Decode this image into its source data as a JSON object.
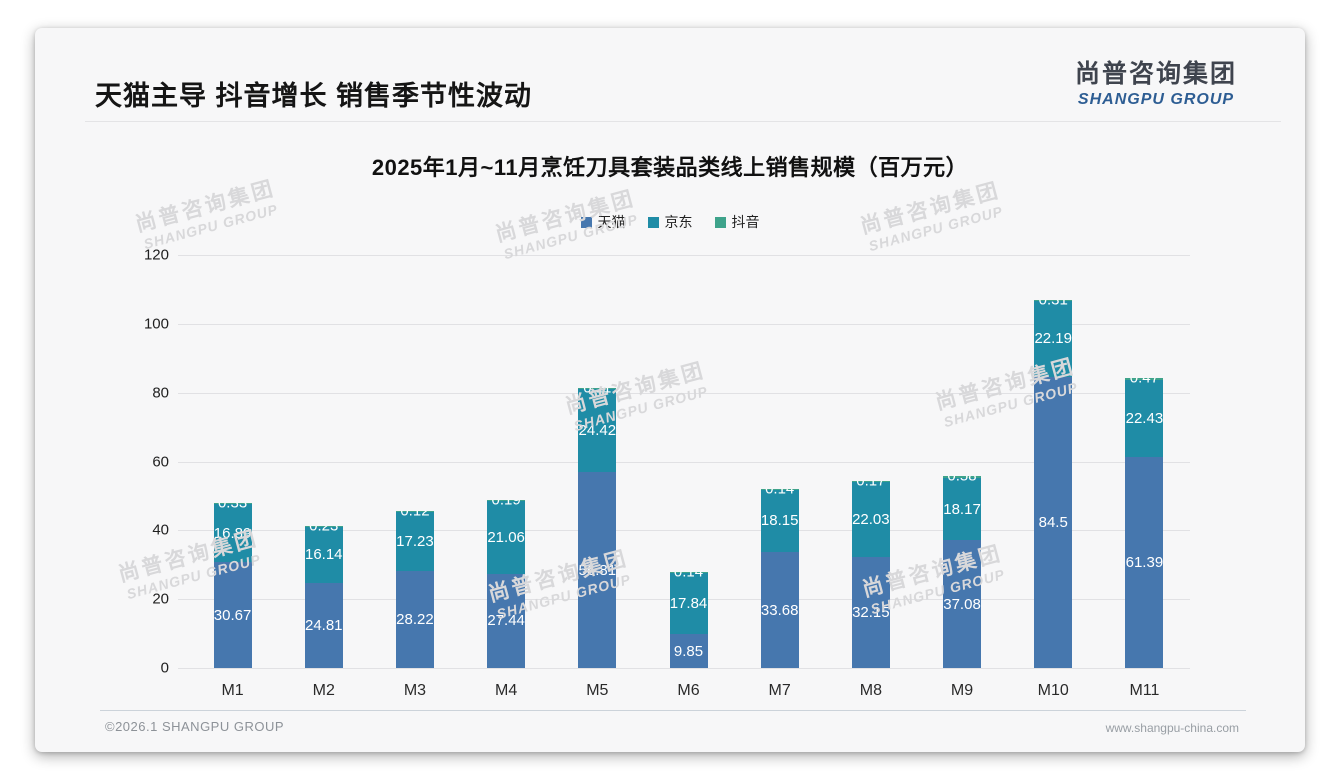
{
  "header": {
    "title": "天猫主导 抖音增长 销售季节性波动"
  },
  "logo": {
    "cn": "尚普咨询集团",
    "en": "SHANGPU GROUP"
  },
  "watermark": {
    "cn": "尚普咨询集团",
    "en": "SHANGPU GROUP"
  },
  "chart_data": {
    "type": "bar",
    "stacked": true,
    "title": "2025年1月~11月烹饪刀具套装品类线上销售规模（百万元）",
    "categories": [
      "M1",
      "M2",
      "M3",
      "M4",
      "M5",
      "M6",
      "M7",
      "M8",
      "M9",
      "M10",
      "M11"
    ],
    "series": [
      {
        "name": "天猫",
        "color": "#4677ae",
        "values": [
          30.67,
          24.81,
          28.22,
          27.44,
          56.81,
          9.85,
          33.68,
          32.15,
          37.08,
          84.5,
          61.39
        ]
      },
      {
        "name": "京东",
        "color": "#1f8ca6",
        "values": [
          16.89,
          16.14,
          17.23,
          21.06,
          24.42,
          17.84,
          18.15,
          22.03,
          18.17,
          22.19,
          22.43
        ]
      },
      {
        "name": "抖音",
        "color": "#3ea38b",
        "values": [
          0.33,
          0.23,
          0.12,
          0.19,
          0.11,
          0.14,
          0.14,
          0.17,
          0.58,
          0.31,
          0.47
        ]
      }
    ],
    "xlabel": "",
    "ylabel": "",
    "ylim": [
      0,
      120
    ],
    "yticks": [
      0,
      20,
      40,
      60,
      80,
      100,
      120
    ],
    "grid": true,
    "legend_position": "top-center",
    "value_labels": "white, centered in each stacked segment"
  },
  "footer": {
    "left": "©2026.1 SHANGPU GROUP",
    "right": "www.shangpu-china.com"
  }
}
